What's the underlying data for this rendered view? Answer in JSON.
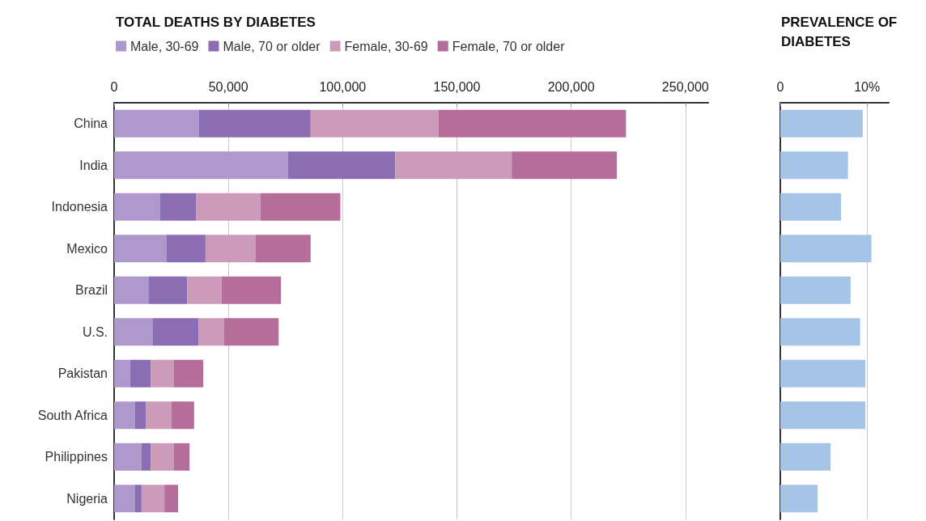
{
  "chart_data": [
    {
      "type": "bar",
      "orientation": "horizontal",
      "stacked": true,
      "title": "TOTAL DEATHS BY DIABETES",
      "categories": [
        "China",
        "India",
        "Indonesia",
        "Mexico",
        "Brazil",
        "U.S.",
        "Pakistan",
        "South Africa",
        "Philippines",
        "Nigeria"
      ],
      "series": [
        {
          "name": "Male, 30-69",
          "color": "#ae98cc",
          "values": [
            37000,
            76000,
            20000,
            23000,
            15000,
            17000,
            7000,
            9000,
            12000,
            9000
          ]
        },
        {
          "name": "Male, 70 or older",
          "color": "#8a6db3",
          "values": [
            49000,
            47000,
            16000,
            17000,
            17000,
            20000,
            9000,
            5000,
            4000,
            3000
          ]
        },
        {
          "name": "Female, 30-69",
          "color": "#cc9bba",
          "values": [
            56000,
            51000,
            28000,
            22000,
            15000,
            11000,
            10000,
            11000,
            10000,
            10000
          ]
        },
        {
          "name": "Female, 70 or older",
          "color": "#b56d9a",
          "values": [
            82000,
            46000,
            35000,
            24000,
            26000,
            24000,
            13000,
            10000,
            7000,
            6000
          ]
        }
      ],
      "xlim": [
        0,
        260000
      ],
      "xticks": [
        0,
        {
          "value": 50000,
          "label": "50,000"
        },
        {
          "value": 100000,
          "label": "100,000"
        },
        {
          "value": 150000,
          "label": "150,000"
        },
        {
          "value": 200000,
          "label": "200,000"
        },
        {
          "value": 250000,
          "label": "250,000"
        }
      ],
      "grid": "x",
      "legend": "top left"
    },
    {
      "type": "bar",
      "orientation": "horizontal",
      "title": "PREVALENCE OF DIABETES",
      "categories": [
        null,
        null,
        null,
        null,
        null,
        null,
        null,
        null,
        null,
        null
      ],
      "values": [
        9.5,
        7.8,
        7.0,
        10.5,
        8.1,
        9.2,
        9.8,
        9.8,
        5.8,
        4.3
      ],
      "color": "#a6c4e6",
      "xlim": [
        0,
        12.5
      ],
      "xticks": [
        0,
        {
          "value": 10,
          "label": "10%"
        }
      ],
      "grid": "x"
    }
  ]
}
